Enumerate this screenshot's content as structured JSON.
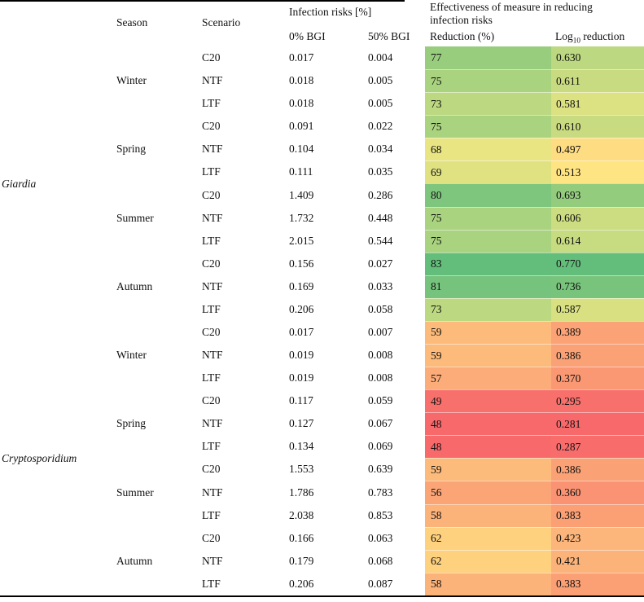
{
  "table": {
    "column_headers": {
      "season": "Season",
      "scenario": "Scenario",
      "infection_risks_group": "Infection risks [%]",
      "bgi_0": "0% BGI",
      "bgi_50": "50% BGI",
      "effectiveness_group": "Effectiveness of measure in reducing infection risks",
      "reduction": "Reduction (%)",
      "log_prefix": "Log",
      "log_sub": "10",
      "log_suffix": " reduction"
    },
    "heat_scale": {
      "min_color": "#F8696B",
      "mid_color": "#FFEB84",
      "max_color": "#63BE7B"
    },
    "species_groups": [
      {
        "species": "Giardia",
        "seasons": [
          {
            "season": "Winter",
            "rows": [
              {
                "scenario": "C20",
                "risk_0bgi": "0.017",
                "risk_50bgi": "0.004",
                "reduction_pct": "77",
                "log10_reduction": "0.630",
                "reduction_color": "#99CD7E",
                "log_color": "#BCD880"
              },
              {
                "scenario": "NTF",
                "risk_0bgi": "0.018",
                "risk_50bgi": "0.005",
                "reduction_pct": "75",
                "log10_reduction": "0.611",
                "reduction_color": "#AAD37F",
                "log_color": "#C8DB81"
              },
              {
                "scenario": "LTF",
                "risk_0bgi": "0.018",
                "risk_50bgi": "0.005",
                "reduction_pct": "73",
                "log10_reduction": "0.581",
                "reduction_color": "#BCD880",
                "log_color": "#DCE182"
              }
            ]
          },
          {
            "season": "Spring",
            "rows": [
              {
                "scenario": "C20",
                "risk_0bgi": "0.091",
                "risk_50bgi": "0.022",
                "reduction_pct": "75",
                "log10_reduction": "0.610",
                "reduction_color": "#AAD37F",
                "log_color": "#C9DB81"
              },
              {
                "scenario": "NTF",
                "risk_0bgi": "0.104",
                "risk_50bgi": "0.034",
                "reduction_pct": "68",
                "log10_reduction": "0.497",
                "reduction_color": "#E9E583",
                "log_color": "#FEDC81"
              },
              {
                "scenario": "LTF",
                "risk_0bgi": "0.111",
                "risk_50bgi": "0.035",
                "reduction_pct": "69",
                "log10_reduction": "0.513",
                "reduction_color": "#E0E282",
                "log_color": "#FFE483"
              }
            ]
          },
          {
            "season": "Summer",
            "rows": [
              {
                "scenario": "C20",
                "risk_0bgi": "1.409",
                "risk_50bgi": "0.286",
                "reduction_pct": "80",
                "log10_reduction": "0.693",
                "reduction_color": "#7EC67D",
                "log_color": "#94CC7E"
              },
              {
                "scenario": "NTF",
                "risk_0bgi": "1.732",
                "risk_50bgi": "0.448",
                "reduction_pct": "75",
                "log10_reduction": "0.606",
                "reduction_color": "#AAD37F",
                "log_color": "#CCDC81"
              },
              {
                "scenario": "LTF",
                "risk_0bgi": "2.015",
                "risk_50bgi": "0.544",
                "reduction_pct": "75",
                "log10_reduction": "0.614",
                "reduction_color": "#AAD37F",
                "log_color": "#C7DB81"
              }
            ]
          },
          {
            "season": "Autumn",
            "rows": [
              {
                "scenario": "C20",
                "risk_0bgi": "0.156",
                "risk_50bgi": "0.027",
                "reduction_pct": "83",
                "log10_reduction": "0.770",
                "reduction_color": "#63BE7B",
                "log_color": "#63BE7B"
              },
              {
                "scenario": "NTF",
                "risk_0bgi": "0.169",
                "risk_50bgi": "0.033",
                "reduction_pct": "81",
                "log10_reduction": "0.736",
                "reduction_color": "#75C37C",
                "log_color": "#79C47C"
              },
              {
                "scenario": "LTF",
                "risk_0bgi": "0.206",
                "risk_50bgi": "0.058",
                "reduction_pct": "73",
                "log10_reduction": "0.587",
                "reduction_color": "#BCD880",
                "log_color": "#D8E082"
              }
            ]
          }
        ]
      },
      {
        "species": "Cryptosporidium",
        "seasons": [
          {
            "season": "Winter",
            "rows": [
              {
                "scenario": "C20",
                "risk_0bgi": "0.017",
                "risk_50bgi": "0.007",
                "reduction_pct": "59",
                "log10_reduction": "0.389",
                "reduction_color": "#FCBB7B",
                "log_color": "#FBA276"
              },
              {
                "scenario": "NTF",
                "risk_0bgi": "0.019",
                "risk_50bgi": "0.008",
                "reduction_pct": "59",
                "log10_reduction": "0.386",
                "reduction_color": "#FCBB7B",
                "log_color": "#FBA176"
              },
              {
                "scenario": "LTF",
                "risk_0bgi": "0.019",
                "risk_50bgi": "0.008",
                "reduction_pct": "57",
                "log10_reduction": "0.370",
                "reduction_color": "#FCAC78",
                "log_color": "#FB9874"
              }
            ]
          },
          {
            "season": "Spring",
            "rows": [
              {
                "scenario": "C20",
                "risk_0bgi": "0.117",
                "risk_50bgi": "0.059",
                "reduction_pct": "49",
                "log10_reduction": "0.295",
                "reduction_color": "#F8706C",
                "log_color": "#F8706C"
              },
              {
                "scenario": "NTF",
                "risk_0bgi": "0.127",
                "risk_50bgi": "0.067",
                "reduction_pct": "48",
                "log10_reduction": "0.281",
                "reduction_color": "#F8696B",
                "log_color": "#F8696B"
              },
              {
                "scenario": "LTF",
                "risk_0bgi": "0.134",
                "risk_50bgi": "0.069",
                "reduction_pct": "48",
                "log10_reduction": "0.287",
                "reduction_color": "#F8696B",
                "log_color": "#F86C6C"
              }
            ]
          },
          {
            "season": "Summer",
            "rows": [
              {
                "scenario": "C20",
                "risk_0bgi": "1.553",
                "risk_50bgi": "0.639",
                "reduction_pct": "59",
                "log10_reduction": "0.386",
                "reduction_color": "#FCBB7B",
                "log_color": "#FBA176"
              },
              {
                "scenario": "NTF",
                "risk_0bgi": "1.786",
                "risk_50bgi": "0.783",
                "reduction_pct": "56",
                "log10_reduction": "0.360",
                "reduction_color": "#FBA476",
                "log_color": "#FA9373"
              },
              {
                "scenario": "LTF",
                "risk_0bgi": "2.038",
                "risk_50bgi": "0.853",
                "reduction_pct": "58",
                "log10_reduction": "0.383",
                "reduction_color": "#FCB379",
                "log_color": "#FB9F75"
              }
            ]
          },
          {
            "season": "Autumn",
            "rows": [
              {
                "scenario": "C20",
                "risk_0bgi": "0.166",
                "risk_50bgi": "0.063",
                "reduction_pct": "62",
                "log10_reduction": "0.423",
                "reduction_color": "#FED17F",
                "log_color": "#FCB57A"
              },
              {
                "scenario": "NTF",
                "risk_0bgi": "0.179",
                "risk_50bgi": "0.068",
                "reduction_pct": "62",
                "log10_reduction": "0.421",
                "reduction_color": "#FED17F",
                "log_color": "#FCB379"
              },
              {
                "scenario": "LTF",
                "risk_0bgi": "0.206",
                "risk_50bgi": "0.087",
                "reduction_pct": "58",
                "log10_reduction": "0.383",
                "reduction_color": "#FCB379",
                "log_color": "#FB9F75"
              }
            ]
          }
        ]
      }
    ]
  }
}
